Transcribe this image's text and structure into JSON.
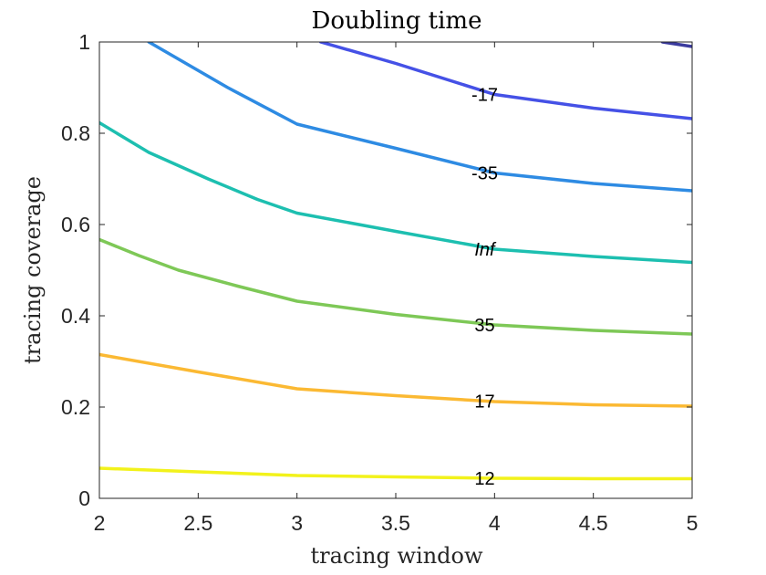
{
  "chart_data": {
    "type": "line",
    "title": "Doubling time",
    "xlabel": "tracing window",
    "ylabel": "tracing coverage",
    "xlim": [
      2,
      5
    ],
    "ylim": [
      0,
      1
    ],
    "xticks": [
      "2",
      "2.5",
      "3",
      "3.5",
      "4",
      "4.5",
      "5"
    ],
    "xtick_values": [
      2,
      2.5,
      3,
      3.5,
      4,
      4.5,
      5
    ],
    "yticks": [
      "0",
      "0.2",
      "0.4",
      "0.6",
      "0.8",
      "1"
    ],
    "ytick_values": [
      0,
      0.2,
      0.4,
      0.6,
      0.8,
      1
    ],
    "grid": false,
    "series": [
      {
        "label": "12",
        "label_italic": false,
        "color": "#f2f21b",
        "label_at": [
          3.95,
          0.044
        ],
        "x": [
          2,
          2.5,
          3,
          3.5,
          4,
          4.5,
          5
        ],
        "y": [
          0.066,
          0.058,
          0.05,
          0.047,
          0.044,
          0.043,
          0.043
        ]
      },
      {
        "label": "17",
        "label_italic": false,
        "color": "#fbb933",
        "label_at": [
          3.95,
          0.213
        ],
        "x": [
          2,
          2.5,
          3,
          3.5,
          4,
          4.5,
          5
        ],
        "y": [
          0.315,
          0.277,
          0.24,
          0.225,
          0.212,
          0.205,
          0.202
        ]
      },
      {
        "label": "35",
        "label_italic": false,
        "color": "#7ec857",
        "label_at": [
          3.95,
          0.38
        ],
        "x": [
          2,
          2.2,
          2.4,
          2.7,
          3,
          3.5,
          4,
          4.5,
          5
        ],
        "y": [
          0.567,
          0.532,
          0.5,
          0.465,
          0.432,
          0.403,
          0.38,
          0.368,
          0.36
        ]
      },
      {
        "label": "Inf",
        "label_italic": true,
        "color": "#1dbfb0",
        "label_at": [
          3.95,
          0.546
        ],
        "x": [
          2,
          2.25,
          2.55,
          2.8,
          3,
          3.5,
          4,
          4.5,
          5
        ],
        "y": [
          0.823,
          0.758,
          0.7,
          0.655,
          0.625,
          0.585,
          0.546,
          0.53,
          0.517
        ]
      },
      {
        "label": "-35",
        "label_italic": false,
        "color": "#2e8be3",
        "label_at": [
          3.95,
          0.713
        ],
        "x": [
          2.25,
          2.45,
          2.65,
          3,
          3.5,
          4,
          4.5,
          5
        ],
        "y": [
          1.0,
          0.95,
          0.9,
          0.82,
          0.767,
          0.713,
          0.69,
          0.674
        ]
      },
      {
        "label": "-17",
        "label_italic": false,
        "color": "#4551e6",
        "label_at": [
          3.95,
          0.885
        ],
        "x": [
          3.12,
          3.5,
          4,
          4.5,
          5
        ],
        "y": [
          1.0,
          0.953,
          0.885,
          0.855,
          0.832
        ]
      },
      {
        "label": "",
        "label_italic": false,
        "color": "#3b3b9e",
        "label_at": null,
        "x": [
          4.85,
          5
        ],
        "y": [
          1.0,
          0.99
        ]
      }
    ]
  }
}
